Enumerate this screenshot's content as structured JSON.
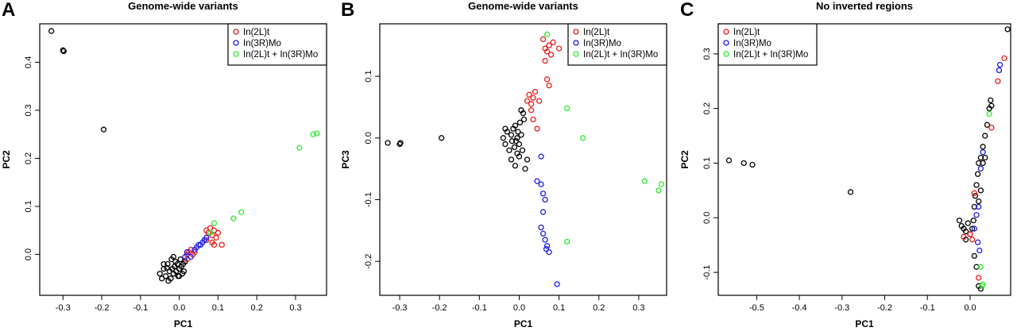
{
  "chart_data": [
    {
      "type": "scatter",
      "panel_label": "A",
      "title": "Genome-wide variants",
      "xlabel": "PC1",
      "ylabel": "PC2",
      "xlim": [
        -0.36,
        0.38
      ],
      "ylim": [
        -0.085,
        0.48
      ],
      "xticks": [
        -0.3,
        -0.2,
        -0.1,
        0.0,
        0.1,
        0.2,
        0.3
      ],
      "xtick_labels": [
        "-0.3",
        "-0.2",
        "-0.1",
        "0.0",
        "0.1",
        "0.2",
        "0.3"
      ],
      "yticks": [
        0.0,
        0.1,
        0.2,
        0.3,
        0.4
      ],
      "ytick_labels": [
        "0.0",
        "0.1",
        "0.2",
        "0.3",
        "0.4"
      ],
      "grid": false,
      "legend_position": "top-right",
      "series": [
        {
          "name": "",
          "color": "#000000",
          "points": [
            [
              -0.33,
              0.465
            ],
            [
              -0.3,
              0.425
            ],
            [
              -0.298,
              0.423
            ],
            [
              -0.195,
              0.26
            ],
            [
              -0.05,
              -0.04
            ],
            [
              -0.045,
              -0.05
            ],
            [
              -0.04,
              -0.03
            ],
            [
              -0.035,
              -0.045
            ],
            [
              -0.03,
              -0.02
            ],
            [
              -0.025,
              -0.035
            ],
            [
              -0.022,
              -0.05
            ],
            [
              -0.02,
              -0.01
            ],
            [
              -0.018,
              -0.03
            ],
            [
              -0.015,
              -0.04
            ],
            [
              -0.012,
              -0.025
            ],
            [
              -0.01,
              -0.015
            ],
            [
              -0.008,
              -0.035
            ],
            [
              -0.005,
              -0.02
            ],
            [
              -0.003,
              -0.045
            ],
            [
              0.0,
              -0.03
            ],
            [
              0.003,
              -0.01
            ],
            [
              0.005,
              -0.025
            ],
            [
              0.008,
              -0.04
            ],
            [
              0.01,
              -0.02
            ],
            [
              0.012,
              -0.035
            ],
            [
              -0.028,
              -0.055
            ],
            [
              -0.04,
              -0.02
            ],
            [
              -0.015,
              -0.005
            ],
            [
              0.015,
              -0.015
            ],
            [
              -0.032,
              -0.028
            ],
            [
              0.0,
              -0.045
            ]
          ]
        },
        {
          "name": "In(2L)t",
          "color": "#e81c1c",
          "points": [
            [
              0.02,
              0.0
            ],
            [
              0.025,
              0.005
            ],
            [
              0.03,
              0.01
            ],
            [
              0.02,
              -0.01
            ],
            [
              0.035,
              0.0
            ],
            [
              0.04,
              0.005
            ],
            [
              0.07,
              0.05
            ],
            [
              0.075,
              0.045
            ],
            [
              0.08,
              0.055
            ],
            [
              0.085,
              0.04
            ],
            [
              0.09,
              0.05
            ],
            [
              0.095,
              0.035
            ],
            [
              0.1,
              0.045
            ],
            [
              0.085,
              0.025
            ],
            [
              0.09,
              0.02
            ],
            [
              0.11,
              0.02
            ],
            [
              0.07,
              0.03
            ]
          ]
        },
        {
          "name": "In(3R)Mo",
          "color": "#1c1ce8",
          "points": [
            [
              0.015,
              -0.005
            ],
            [
              0.02,
              0.005
            ],
            [
              0.03,
              -0.005
            ],
            [
              0.04,
              0.01
            ],
            [
              0.045,
              0.015
            ],
            [
              0.05,
              0.02
            ],
            [
              0.055,
              0.02
            ],
            [
              0.06,
              0.025
            ],
            [
              0.065,
              0.03
            ],
            [
              0.07,
              0.035
            ]
          ]
        },
        {
          "name": "In(2L)t + In(3R)Mo",
          "color": "#2ee82e",
          "points": [
            [
              0.08,
              0.045
            ],
            [
              0.09,
              0.065
            ],
            [
              0.14,
              0.075
            ],
            [
              0.16,
              0.088
            ],
            [
              0.31,
              0.222
            ],
            [
              0.345,
              0.25
            ],
            [
              0.355,
              0.252
            ]
          ]
        }
      ]
    },
    {
      "type": "scatter",
      "panel_label": "B",
      "title": "Genome-wide variants",
      "xlabel": "PC1",
      "ylabel": "PC3",
      "xlim": [
        -0.35,
        0.37
      ],
      "ylim": [
        -0.255,
        0.185
      ],
      "xticks": [
        -0.3,
        -0.2,
        -0.1,
        0.0,
        0.1,
        0.2,
        0.3
      ],
      "xtick_labels": [
        "-0.3",
        "-0.2",
        "-0.1",
        "0.0",
        "0.1",
        "0.2",
        "0.3"
      ],
      "yticks": [
        -0.2,
        -0.1,
        0.0,
        0.1
      ],
      "ytick_labels": [
        "-0.2",
        "-0.1",
        "0.0",
        "0.1"
      ],
      "grid": false,
      "legend_position": "top-right",
      "series": [
        {
          "name": "",
          "color": "#000000",
          "points": [
            [
              -0.33,
              -0.008
            ],
            [
              -0.3,
              -0.01
            ],
            [
              -0.298,
              -0.008
            ],
            [
              -0.195,
              0.0
            ],
            [
              -0.04,
              0.0
            ],
            [
              -0.035,
              -0.01
            ],
            [
              -0.03,
              0.01
            ],
            [
              -0.025,
              -0.02
            ],
            [
              -0.02,
              0.005
            ],
            [
              -0.018,
              -0.005
            ],
            [
              -0.015,
              0.015
            ],
            [
              -0.012,
              -0.015
            ],
            [
              -0.01,
              0.02
            ],
            [
              -0.008,
              -0.005
            ],
            [
              -0.005,
              0.0
            ],
            [
              -0.003,
              0.01
            ],
            [
              0.0,
              -0.01
            ],
            [
              0.002,
              0.025
            ],
            [
              0.005,
              0.005
            ],
            [
              0.008,
              -0.02
            ],
            [
              0.01,
              0.04
            ],
            [
              0.012,
              0.03
            ],
            [
              -0.02,
              -0.035
            ],
            [
              -0.01,
              -0.045
            ],
            [
              0.0,
              -0.03
            ],
            [
              0.015,
              -0.05
            ],
            [
              0.02,
              -0.035
            ],
            [
              -0.035,
              0.015
            ],
            [
              0.005,
              0.045
            ],
            [
              -0.005,
              -0.025
            ]
          ]
        },
        {
          "name": "In(2L)t",
          "color": "#e81c1c",
          "points": [
            [
              0.06,
              0.16
            ],
            [
              0.065,
              0.145
            ],
            [
              0.07,
              0.14
            ],
            [
              0.075,
              0.15
            ],
            [
              0.08,
              0.135
            ],
            [
              0.085,
              0.155
            ],
            [
              0.1,
              0.145
            ],
            [
              0.065,
              0.125
            ],
            [
              0.07,
              0.095
            ],
            [
              0.075,
              0.085
            ],
            [
              0.02,
              0.06
            ],
            [
              0.025,
              0.07
            ],
            [
              0.03,
              0.055
            ],
            [
              0.035,
              0.065
            ],
            [
              0.04,
              0.075
            ],
            [
              0.05,
              0.06
            ],
            [
              0.03,
              0.045
            ],
            [
              0.035,
              0.03
            ],
            [
              0.045,
              0.015
            ]
          ]
        },
        {
          "name": "In(3R)Mo",
          "color": "#1c1ce8",
          "points": [
            [
              0.055,
              -0.03
            ],
            [
              0.045,
              -0.07
            ],
            [
              0.055,
              -0.075
            ],
            [
              0.06,
              -0.09
            ],
            [
              0.065,
              -0.1
            ],
            [
              0.06,
              -0.12
            ],
            [
              0.055,
              -0.145
            ],
            [
              0.06,
              -0.155
            ],
            [
              0.065,
              -0.165
            ],
            [
              0.07,
              -0.175
            ],
            [
              0.075,
              -0.185
            ],
            [
              0.068,
              -0.18
            ],
            [
              0.095,
              -0.237
            ]
          ]
        },
        {
          "name": "In(2L)t + In(3R)Mo",
          "color": "#2ee82e",
          "points": [
            [
              0.07,
              0.168
            ],
            [
              0.12,
              0.048
            ],
            [
              0.16,
              0.0
            ],
            [
              0.12,
              -0.168
            ],
            [
              0.315,
              -0.07
            ],
            [
              0.35,
              -0.085
            ],
            [
              0.357,
              -0.075
            ]
          ]
        }
      ]
    },
    {
      "type": "scatter",
      "panel_label": "C",
      "title": "No inverted regions",
      "xlabel": "PC1",
      "ylabel": "PC2",
      "xlim": [
        -0.59,
        0.095
      ],
      "ylim": [
        -0.142,
        0.355
      ],
      "xticks": [
        -0.5,
        -0.4,
        -0.3,
        -0.2,
        -0.1,
        0.0
      ],
      "xtick_labels": [
        "-0.5",
        "-0.4",
        "-0.3",
        "-0.2",
        "-0.1",
        "0.0"
      ],
      "yticks": [
        -0.1,
        0.0,
        0.1,
        0.2,
        0.3
      ],
      "ytick_labels": [
        "-0.1",
        "0.0",
        "0.1",
        "0.2",
        "0.3"
      ],
      "grid": false,
      "legend_position": "top-left",
      "series": [
        {
          "name": "",
          "color": "#000000",
          "points": [
            [
              0.088,
              0.345
            ],
            [
              -0.565,
              0.105
            ],
            [
              -0.53,
              0.1
            ],
            [
              -0.51,
              0.097
            ],
            [
              -0.28,
              0.047
            ],
            [
              -0.02,
              -0.015
            ],
            [
              -0.015,
              -0.02
            ],
            [
              -0.01,
              -0.025
            ],
            [
              -0.005,
              -0.01
            ],
            [
              0.0,
              -0.03
            ],
            [
              0.005,
              -0.02
            ],
            [
              0.008,
              -0.005
            ],
            [
              0.01,
              0.02
            ],
            [
              0.012,
              0.04
            ],
            [
              0.015,
              0.06
            ],
            [
              0.018,
              0.08
            ],
            [
              0.02,
              0.1
            ],
            [
              0.025,
              0.11
            ],
            [
              0.03,
              0.13
            ],
            [
              0.035,
              0.15
            ],
            [
              0.04,
              0.17
            ],
            [
              0.045,
              0.2
            ],
            [
              0.048,
              0.215
            ],
            [
              0.05,
              0.205
            ],
            [
              0.03,
              0.1
            ],
            [
              0.035,
              0.11
            ],
            [
              0.01,
              -0.07
            ],
            [
              0.015,
              -0.09
            ],
            [
              0.02,
              -0.125
            ],
            [
              0.025,
              -0.13
            ],
            [
              -0.01,
              -0.04
            ],
            [
              0.02,
              0.03
            ],
            [
              0.025,
              0.05
            ],
            [
              -0.025,
              -0.005
            ]
          ]
        },
        {
          "name": "In(2L)t",
          "color": "#e81c1c",
          "points": [
            [
              0.08,
              0.292
            ],
            [
              0.065,
              0.25
            ],
            [
              0.05,
              0.165
            ],
            [
              0.01,
              0.045
            ],
            [
              0.005,
              -0.04
            ],
            [
              0.0,
              -0.03
            ],
            [
              0.02,
              -0.11
            ],
            [
              -0.015,
              -0.035
            ]
          ]
        },
        {
          "name": "In(3R)Mo",
          "color": "#1c1ce8",
          "points": [
            [
              0.07,
              0.28
            ],
            [
              0.068,
              0.27
            ],
            [
              0.03,
              0.12
            ],
            [
              0.025,
              0.09
            ],
            [
              0.02,
              0.02
            ],
            [
              0.015,
              0.005
            ],
            [
              0.01,
              -0.02
            ],
            [
              0.018,
              -0.045
            ],
            [
              0.022,
              -0.06
            ]
          ]
        },
        {
          "name": "In(2L)t + In(3R)Mo",
          "color": "#2ee82e",
          "points": [
            [
              0.045,
              0.19
            ],
            [
              0.025,
              -0.09
            ],
            [
              0.028,
              -0.125
            ],
            [
              0.03,
              -0.122
            ]
          ]
        }
      ]
    }
  ]
}
